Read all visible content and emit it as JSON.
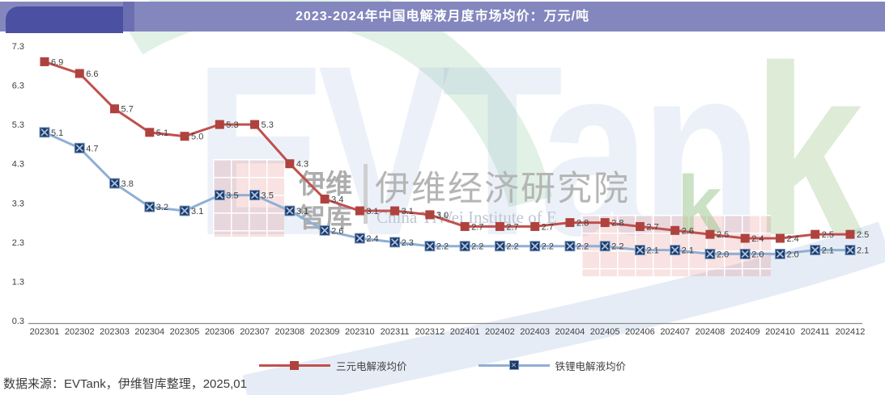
{
  "header": {
    "title": "2023-2024年中国电解液月度市场均价：万元/吨",
    "bar_color": "#8487BE",
    "tab_color": "#4C50A2"
  },
  "chart_data": {
    "type": "line",
    "title": "2023-2024年中国电解液月度市场均价：万元/吨",
    "unit": "万元/吨",
    "categories": [
      "202301",
      "202302",
      "202303",
      "202304",
      "202305",
      "202306",
      "202307",
      "202308",
      "202309",
      "202310",
      "202311",
      "202312",
      "202401",
      "202402",
      "202403",
      "202404",
      "202405",
      "202406",
      "202407",
      "202408",
      "202409",
      "202410",
      "202411",
      "202412"
    ],
    "series": [
      {
        "id": "ternary",
        "name": "三元电解液均价",
        "color": "#C0504D",
        "marker_color": "#AF423E",
        "marker": "square",
        "values": [
          6.9,
          6.6,
          5.7,
          5.1,
          5.0,
          5.3,
          5.3,
          4.3,
          3.4,
          3.1,
          3.1,
          3.0,
          2.7,
          2.7,
          2.7,
          2.8,
          2.8,
          2.7,
          2.6,
          2.5,
          2.4,
          2.4,
          2.5,
          2.5
        ]
      },
      {
        "id": "lfp",
        "name": "铁锂电解液均价",
        "color": "#8FAFD4",
        "marker_color": "#1F3864",
        "marker": "x-square",
        "values": [
          5.1,
          4.7,
          3.8,
          3.2,
          3.1,
          3.5,
          3.5,
          3.1,
          2.6,
          2.4,
          2.3,
          2.2,
          2.2,
          2.2,
          2.2,
          2.2,
          2.2,
          2.1,
          2.1,
          2.0,
          2.0,
          2.0,
          2.1,
          2.1
        ]
      }
    ],
    "ylim": [
      0.3,
      7.3
    ],
    "yticks": [
      7.3,
      6.3,
      5.3,
      4.3,
      3.3,
      2.3,
      1.3,
      0.3
    ],
    "grid": false,
    "legend_position": "bottom",
    "data_labels": true
  },
  "watermark": {
    "brand": "EVTank",
    "cn_small_top": "伊维",
    "cn_small_bottom": "智库",
    "cn_large": "伊维经济研究院",
    "en": "China YiWei Institute of E",
    "green_letter": "k"
  },
  "footer": {
    "source": "数据来源：EVTank，伊维智库整理，2025,01"
  }
}
